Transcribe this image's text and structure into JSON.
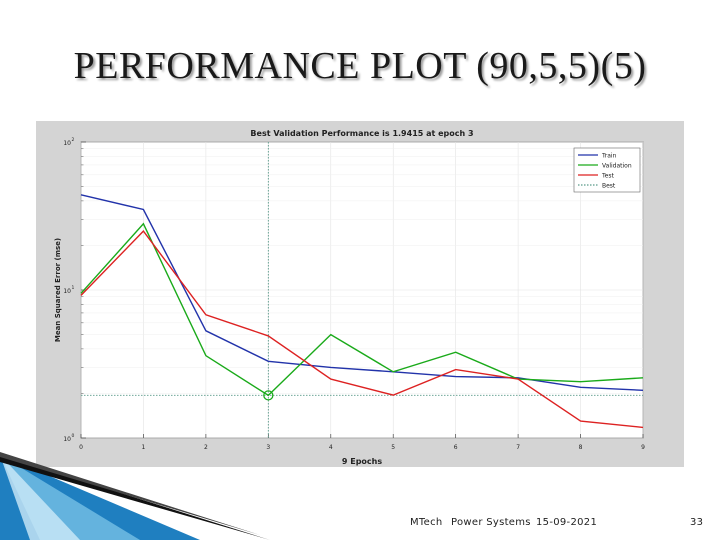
{
  "slide": {
    "title": "PERFORMANCE PLOT (90,5,5)(5)"
  },
  "footer": {
    "course": "MTech",
    "dept": "Power Systems",
    "date": "15-09-2021",
    "page": "33"
  },
  "colors": {
    "train": "#2233aa",
    "validation": "#1aaa1a",
    "test": "#dd2222",
    "best": "#5a9a8a",
    "accent_blue": "#1f7fc0"
  },
  "chart_data": {
    "type": "line",
    "title": "Best Validation Performance is 1.9415 at epoch 3",
    "xlabel": "9 Epochs",
    "ylabel": "Mean Squared Error  (mse)",
    "yscale": "log",
    "xlim": [
      0,
      9
    ],
    "ylim": [
      1,
      100
    ],
    "xticks": [
      "0",
      "1",
      "2",
      "3",
      "4",
      "5",
      "6",
      "7",
      "8",
      "9"
    ],
    "yticks": [
      {
        "value": 1,
        "base": "10",
        "exp": "0"
      },
      {
        "value": 10,
        "base": "10",
        "exp": "1"
      },
      {
        "value": 100,
        "base": "10",
        "exp": "2"
      }
    ],
    "grid": true,
    "legend_position": "top-right",
    "x": [
      0,
      1,
      2,
      3,
      4,
      5,
      6,
      7,
      8,
      9
    ],
    "series": [
      {
        "name": "Train",
        "color": "#2233aa",
        "values": [
          44,
          35,
          5.3,
          3.3,
          3.0,
          2.8,
          2.6,
          2.55,
          2.2,
          2.1
        ]
      },
      {
        "name": "Validation",
        "color": "#1aaa1a",
        "values": [
          9.5,
          28,
          3.6,
          1.9415,
          5.0,
          2.8,
          3.8,
          2.5,
          2.4,
          2.55
        ]
      },
      {
        "name": "Test",
        "color": "#dd2222",
        "values": [
          9.2,
          25,
          6.8,
          4.9,
          2.5,
          1.95,
          2.9,
          2.5,
          1.3,
          1.18
        ]
      }
    ],
    "best": {
      "name": "Best",
      "epoch": 3,
      "value": 1.9415
    }
  }
}
